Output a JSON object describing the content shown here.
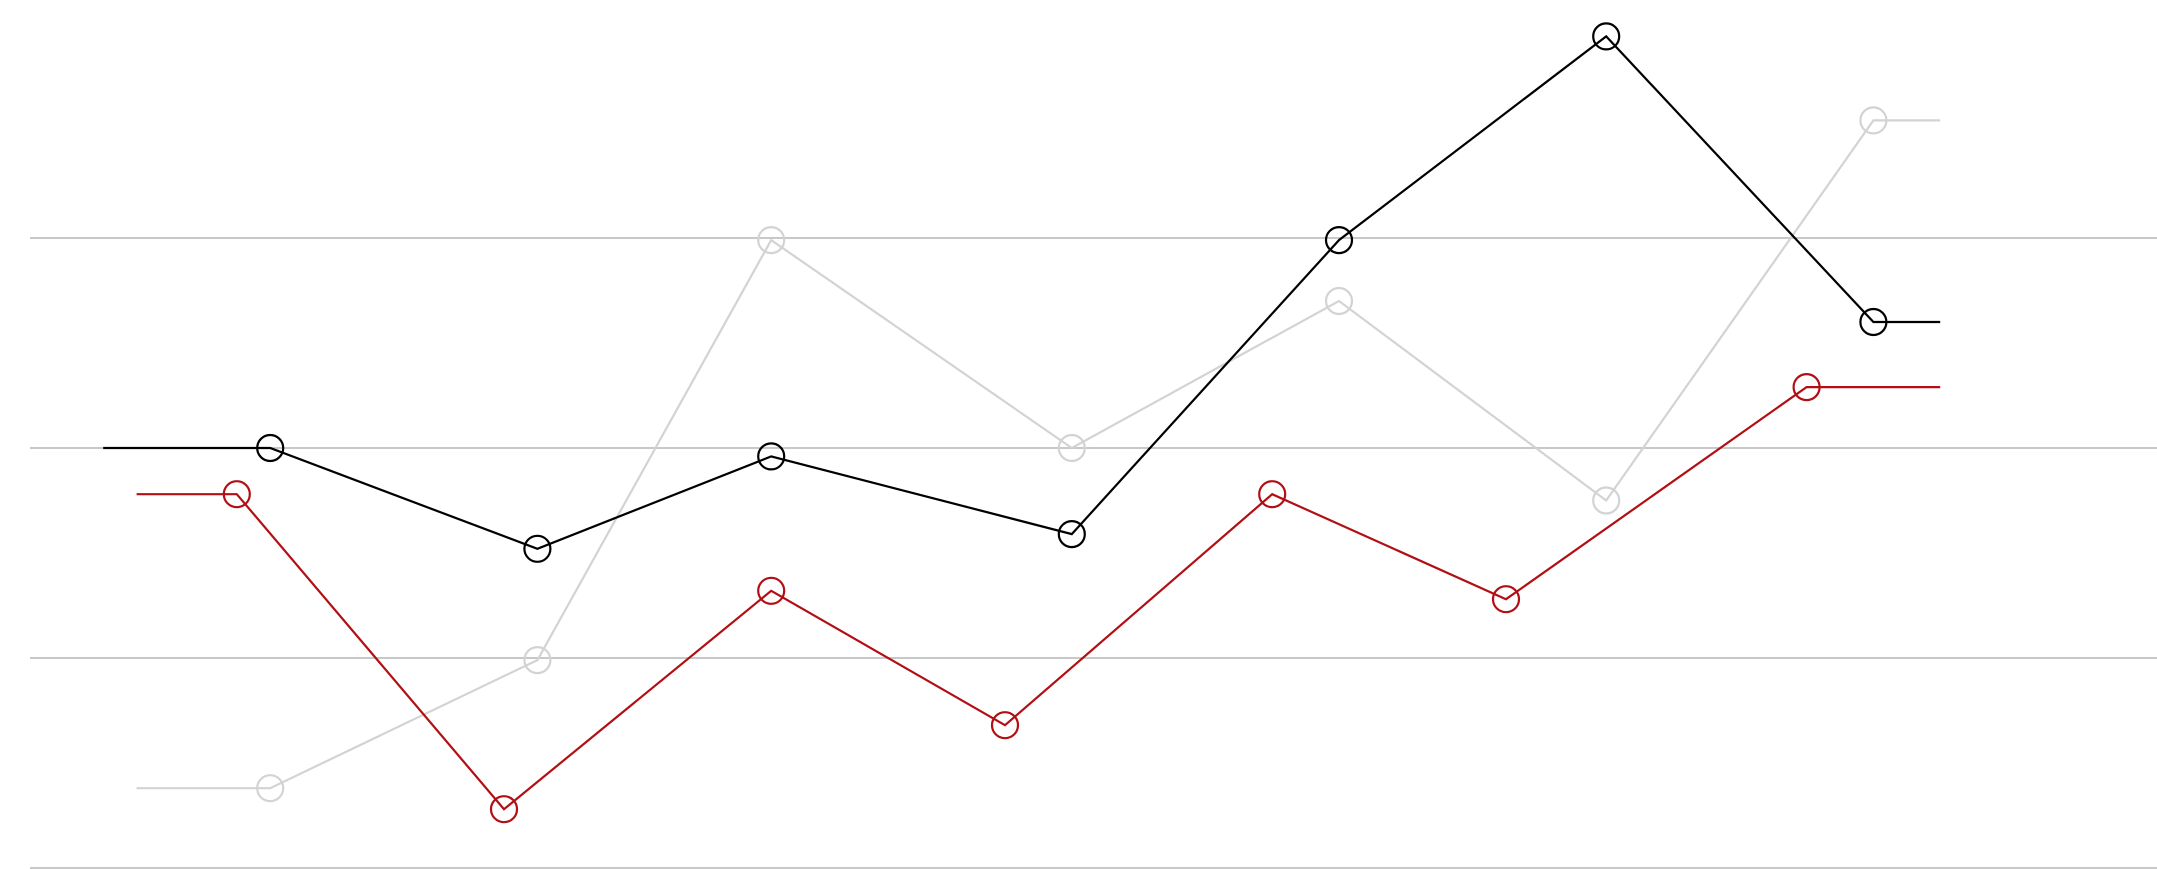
{
  "chart_data": {
    "type": "line",
    "ylim": [
      0,
      4
    ],
    "gridlines_y": [
      0,
      1,
      2,
      3
    ],
    "grid": "horizontal",
    "legend": "none",
    "series": [
      {
        "color": "#000000",
        "x": [
          0.3,
          1.1,
          1.8,
          2.7,
          3.5,
          4.3,
          5.1
        ],
        "y": [
          2.0,
          1.52,
          1.96,
          1.59,
          2.99,
          3.96,
          2.6
        ],
        "start_x": -0.2,
        "start_y": 2.0,
        "end_x": 5.3,
        "end_y": 2.6
      },
      {
        "color": "#b10f14",
        "x": [
          0.2,
          1.0,
          1.8,
          2.5,
          3.3,
          4.0,
          4.9
        ],
        "y": [
          1.78,
          0.28,
          1.32,
          0.68,
          1.78,
          1.28,
          2.29
        ],
        "start_x": -0.1,
        "start_y": 1.78,
        "end_x": 5.3,
        "end_y": 2.29
      },
      {
        "color": "#d3d3d3",
        "x": [
          0.3,
          1.1,
          1.8,
          2.7,
          3.5,
          4.3,
          5.1
        ],
        "y": [
          0.38,
          0.99,
          2.99,
          2.0,
          2.7,
          1.75,
          3.56
        ],
        "start_x": -0.1,
        "start_y": 0.38,
        "end_x": 5.3,
        "end_y": 3.56
      }
    ]
  }
}
